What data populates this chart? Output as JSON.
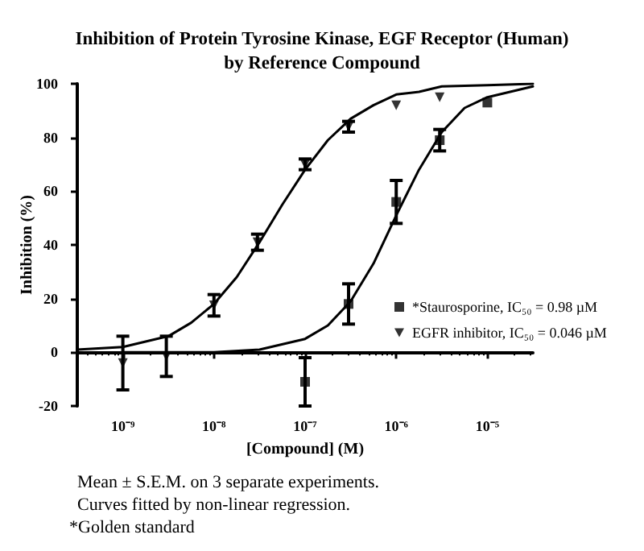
{
  "chart_data": {
    "type": "scatter",
    "title": "Inhibition of Protein Tyrosine Kinase, EGF Receptor (Human)\nby Reference Compound",
    "xlabel": "[Compound] (M)",
    "ylabel": "Inhibition (%)",
    "log": "x",
    "xlim": [
      3.162e-10,
      3.162e-05
    ],
    "xticks": [
      {
        "value": 1e-09,
        "label": "10⁻⁹"
      },
      {
        "value": 1e-08,
        "label": "10⁻⁸"
      },
      {
        "value": 1e-07,
        "label": "10⁻⁷"
      },
      {
        "value": 1e-06,
        "label": "10⁻⁶"
      },
      {
        "value": 1e-05,
        "label": "10⁻⁵"
      }
    ],
    "ylim": [
      -20,
      100
    ],
    "yticks": [
      -20,
      0,
      20,
      40,
      60,
      80,
      100
    ],
    "legend": "bottom right",
    "series": [
      {
        "name": "*Staurosporine, IC₅₀ = 0.98 µM",
        "marker": "square",
        "color": "#000000",
        "x": [
          1e-07,
          3e-07,
          1e-06,
          3e-06,
          1e-05
        ],
        "values": [
          -11,
          18,
          56,
          79,
          93
        ],
        "errors": [
          9,
          7.5,
          8,
          4,
          null
        ]
      },
      {
        "name": "EGFR inhibitor, IC₅₀ = 0.046 µM",
        "marker": "triangle",
        "color": "#000000",
        "x": [
          1e-09,
          3e-09,
          1e-08,
          3e-08,
          1e-07,
          3e-07,
          1e-06,
          3e-06
        ],
        "values": [
          -4,
          -1.5,
          17.5,
          41,
          70,
          84,
          92,
          95
        ],
        "errors": [
          10,
          7.5,
          4,
          3,
          2,
          2,
          null,
          null
        ]
      },
      {
        "type": "line",
        "marker": "none",
        "color": "#000000",
        "x": [
          1e-09,
          1e-08,
          3.162e-08,
          1e-07,
          1.778e-07,
          3.162e-07,
          5.623e-07,
          1e-06,
          1.778e-06,
          3.162e-06,
          5.623e-06,
          1e-05,
          3.162e-05
        ],
        "values": [
          0,
          0,
          1,
          5,
          10,
          19,
          33,
          51,
          68,
          82,
          91,
          95,
          99
        ]
      },
      {
        "type": "line",
        "marker": "none",
        "color": "#000000",
        "x": [
          3.162e-10,
          1e-09,
          3.162e-09,
          5.623e-09,
          1e-08,
          1.778e-08,
          3.162e-08,
          5.623e-08,
          1e-07,
          1.778e-07,
          3.162e-07,
          5.623e-07,
          1e-06,
          1.778e-06,
          3.162e-06,
          1e-05,
          3.162e-05
        ],
        "values": [
          1,
          2,
          6,
          11,
          18,
          28,
          41,
          55,
          68,
          79,
          87,
          92,
          96,
          97,
          99,
          99.5,
          100
        ]
      }
    ],
    "annotations": [
      "Mean ± S.E.M. on 3 separate experiments.",
      "Curves fitted by non-linear regression.",
      "*Golden standard"
    ]
  }
}
